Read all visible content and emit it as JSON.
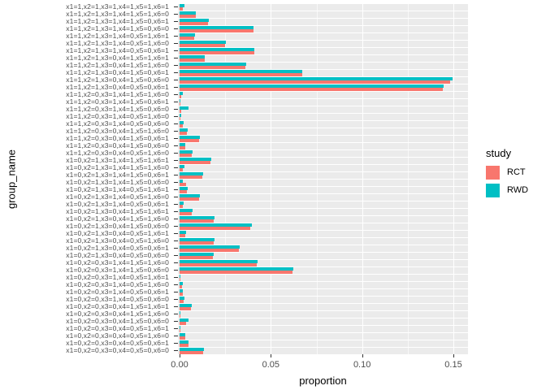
{
  "figure": {
    "x_title": "proportion",
    "y_title": "group_name"
  },
  "legend": {
    "title": "study",
    "entries": [
      {
        "label": "RCT",
        "color": "#F8766D"
      },
      {
        "label": "RWD",
        "color": "#00BFC4"
      }
    ]
  },
  "colors": {
    "rct": "#F8766D",
    "rwd": "#00BFC4",
    "panel_bg": "#EBEBEB",
    "grid": "#FFFFFF",
    "axis_text": "#4D4D4D",
    "tick_mark": "#333333"
  },
  "chart_data": {
    "type": "bar",
    "orientation": "horizontal",
    "title": "",
    "xlabel": "proportion",
    "ylabel": "group_name",
    "xlim": [
      0,
      0.158
    ],
    "x_major_ticks": [
      0,
      0.05,
      0.1,
      0.15
    ],
    "x_major_tick_labels": [
      "0.00",
      "0.05",
      "0.10",
      "0.15"
    ],
    "x_minor_ticks": [
      0.025,
      0.075,
      0.125
    ],
    "grid": "white-on-grey",
    "legend_position": "right",
    "categories": [
      "x1=1,x2=1,x3=1,x4=1,x5=1,x6=1",
      "x1=1,x2=1,x3=1,x4=1,x5=1,x6=0",
      "x1=1,x2=1,x3=1,x4=1,x5=0,x6=1",
      "x1=1,x2=1,x3=1,x4=1,x5=0,x6=0",
      "x1=1,x2=1,x3=1,x4=0,x5=1,x6=1",
      "x1=1,x2=1,x3=1,x4=0,x5=1,x6=0",
      "x1=1,x2=1,x3=1,x4=0,x5=0,x6=1",
      "x1=1,x2=1,x3=0,x4=1,x5=1,x6=1",
      "x1=1,x2=1,x3=0,x4=1,x5=1,x6=0",
      "x1=1,x2=1,x3=0,x4=1,x5=0,x6=1",
      "x1=1,x2=1,x3=0,x4=1,x5=0,x6=0",
      "x1=1,x2=1,x3=0,x4=0,x5=0,x6=1",
      "x1=1,x2=0,x3=1,x4=1,x5=1,x6=0",
      "x1=1,x2=0,x3=1,x4=1,x5=0,x6=1",
      "x1=1,x2=0,x3=1,x4=1,x5=0,x6=0",
      "x1=1,x2=0,x3=1,x4=0,x5=1,x6=0",
      "x1=1,x2=0,x3=1,x4=0,x5=0,x6=0",
      "x1=1,x2=0,x3=0,x4=1,x5=1,x6=0",
      "x1=1,x2=0,x3=0,x4=1,x5=0,x6=1",
      "x1=1,x2=0,x3=0,x4=1,x5=0,x6=0",
      "x1=1,x2=0,x3=0,x4=0,x5=1,x6=0",
      "x1=0,x2=1,x3=1,x4=1,x5=1,x6=1",
      "x1=0,x2=1,x3=1,x4=1,x5=1,x6=0",
      "x1=0,x2=1,x3=1,x4=1,x5=0,x6=1",
      "x1=0,x2=1,x3=1,x4=1,x5=0,x6=0",
      "x1=0,x2=1,x3=1,x4=0,x5=1,x6=1",
      "x1=0,x2=1,x3=1,x4=0,x5=1,x6=0",
      "x1=0,x2=1,x3=1,x4=0,x5=0,x6=1",
      "x1=0,x2=1,x3=0,x4=1,x5=1,x6=1",
      "x1=0,x2=1,x3=0,x4=1,x5=1,x6=0",
      "x1=0,x2=1,x3=0,x4=1,x5=0,x6=0",
      "x1=0,x2=1,x3=0,x4=0,x5=1,x6=1",
      "x1=0,x2=1,x3=0,x4=0,x5=1,x6=0",
      "x1=0,x2=1,x3=0,x4=0,x5=0,x6=1",
      "x1=0,x2=1,x3=0,x4=0,x5=0,x6=0",
      "x1=0,x2=0,x3=1,x4=1,x5=1,x6=0",
      "x1=0,x2=0,x3=1,x4=1,x5=0,x6=0",
      "x1=0,x2=0,x3=1,x4=0,x5=1,x6=1",
      "x1=0,x2=0,x3=1,x4=0,x5=1,x6=0",
      "x1=0,x2=0,x3=1,x4=0,x5=0,x6=1",
      "x1=0,x2=0,x3=1,x4=0,x5=0,x6=0",
      "x1=0,x2=0,x3=0,x4=1,x5=1,x6=1",
      "x1=0,x2=0,x3=0,x4=1,x5=1,x6=0",
      "x1=0,x2=0,x3=0,x4=1,x5=0,x6=0",
      "x1=0,x2=0,x3=0,x4=0,x5=1,x6=1",
      "x1=0,x2=0,x3=0,x4=0,x5=1,x6=0",
      "x1=0,x2=0,x3=0,x4=0,x5=0,x6=1",
      "x1=0,x2=0,x3=0,x4=0,x5=0,x6=0"
    ],
    "series": [
      {
        "name": "RWD",
        "color": "#00BFC4",
        "values": [
          0.0027,
          0.0089,
          0.0159,
          0.0406,
          0.0084,
          0.0254,
          0.041,
          0.0137,
          0.0366,
          0.0674,
          0.1494,
          0.1446,
          0.0018,
          0.0006,
          0.0049,
          0.0007,
          0.0022,
          0.0044,
          0.0111,
          0.0032,
          0.0071,
          0.0173,
          0.0025,
          0.0128,
          0.0018,
          0.0044,
          0.0111,
          0.0022,
          0.0071,
          0.019,
          0.0394,
          0.0035,
          0.019,
          0.0329,
          0.0187,
          0.0426,
          0.0625,
          0.0006,
          0.0016,
          0.0019,
          0.0025,
          0.0065,
          0.0006,
          0.005,
          0.0004,
          0.0032,
          0.005,
          0.0133
        ]
      },
      {
        "name": "RCT",
        "color": "#F8766D",
        "values": [
          0.0016,
          0.0088,
          0.0157,
          0.0403,
          0.0082,
          0.0251,
          0.0408,
          0.0136,
          0.0361,
          0.0672,
          0.1482,
          0.144,
          0.0009,
          0.0003,
          0.001,
          0.0004,
          0.0016,
          0.004,
          0.0106,
          0.0029,
          0.0066,
          0.017,
          0.0019,
          0.0125,
          0.0035,
          0.004,
          0.0106,
          0.0018,
          0.0066,
          0.0187,
          0.0389,
          0.0032,
          0.0187,
          0.0325,
          0.0184,
          0.0423,
          0.062,
          0.0003,
          0.0013,
          0.0016,
          0.0022,
          0.0062,
          0.0004,
          0.0035,
          0.0002,
          0.0029,
          0.0047,
          0.013
        ]
      }
    ]
  }
}
